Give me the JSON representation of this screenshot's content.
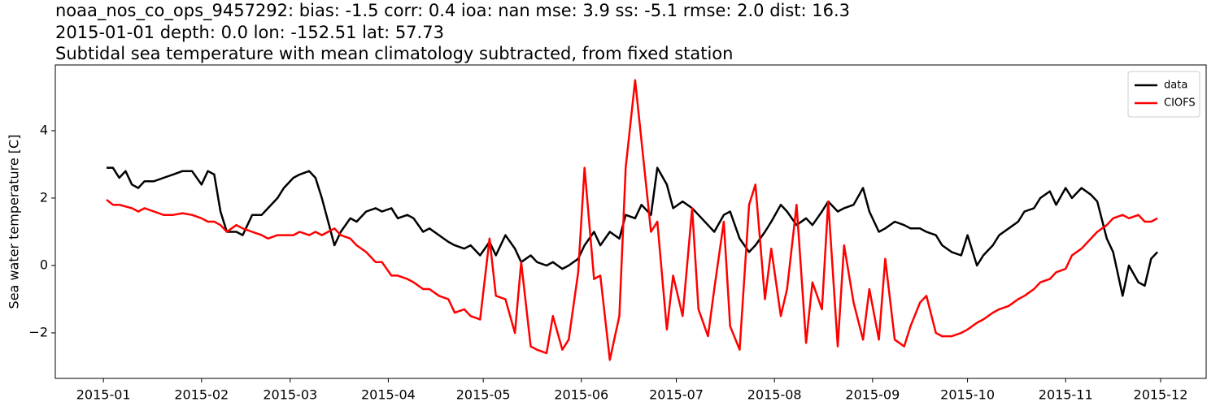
{
  "chart_data": {
    "type": "line",
    "title": "noaa_nos_co_ops_9457292: bias: -1.5  corr: 0.4  ioa: nan  mse: 3.9  ss: -5.1  rmse: 2.0  dist: 16.3",
    "subtitle": "2015-01-01 depth: 0.0 lon: -152.51 lat: 57.73",
    "subtitle2": "Subtidal sea temperature with mean climatology subtracted, from fixed station",
    "y_label": "Sea water temperature [C]",
    "x": [
      1,
      3,
      5,
      7,
      9,
      11,
      13,
      16,
      19,
      22,
      25,
      28,
      31,
      33,
      35,
      37,
      39,
      42,
      44,
      47,
      50,
      52,
      55,
      57,
      60,
      62,
      65,
      67,
      69,
      71,
      73,
      75,
      78,
      80,
      83,
      86,
      88,
      91,
      93,
      96,
      98,
      101,
      103,
      106,
      109,
      111,
      114,
      116,
      119,
      122,
      124,
      127,
      130,
      132,
      135,
      137,
      140,
      142,
      145,
      147,
      150,
      152,
      155,
      157,
      160,
      163,
      165,
      168,
      170,
      173,
      175,
      178,
      180,
      183,
      186,
      188,
      191,
      193,
      196,
      198,
      201,
      204,
      206,
      209,
      211,
      214,
      216,
      219,
      222,
      224,
      227,
      229,
      232,
      234,
      237,
      240,
      242,
      245,
      247,
      250,
      253,
      255,
      258,
      260,
      263,
      265,
      268,
      271,
      273,
      276,
      278,
      281,
      283,
      286,
      289,
      291,
      294,
      296,
      299,
      301,
      304,
      306,
      309,
      312,
      314,
      317,
      319,
      322,
      324,
      327,
      329,
      331,
      333
    ],
    "series": [
      {
        "name": "data",
        "color": "#000000",
        "values": [
          2.9,
          2.9,
          2.6,
          2.8,
          2.4,
          2.3,
          2.5,
          2.5,
          2.6,
          2.7,
          2.8,
          2.8,
          2.4,
          2.8,
          2.7,
          1.6,
          1.0,
          1.0,
          0.9,
          1.5,
          1.5,
          1.7,
          2.0,
          2.3,
          2.6,
          2.7,
          2.8,
          2.6,
          2.0,
          1.3,
          0.6,
          1.0,
          1.4,
          1.3,
          1.6,
          1.7,
          1.6,
          1.7,
          1.4,
          1.5,
          1.4,
          1.0,
          1.1,
          0.9,
          0.7,
          0.6,
          0.5,
          0.6,
          0.3,
          0.7,
          0.3,
          0.9,
          0.5,
          0.1,
          0.3,
          0.1,
          0.0,
          0.1,
          -0.1,
          0.0,
          0.2,
          0.6,
          1.0,
          0.6,
          1.0,
          0.8,
          1.5,
          1.4,
          1.8,
          1.5,
          2.9,
          2.4,
          1.7,
          1.9,
          1.7,
          1.5,
          1.2,
          1.0,
          1.5,
          1.6,
          0.8,
          0.4,
          0.6,
          1.0,
          1.3,
          1.8,
          1.6,
          1.2,
          1.4,
          1.2,
          1.6,
          1.9,
          1.6,
          1.7,
          1.8,
          2.3,
          1.6,
          1.0,
          1.1,
          1.3,
          1.2,
          1.1,
          1.1,
          1.0,
          0.9,
          0.6,
          0.4,
          0.3,
          0.9,
          0.0,
          0.3,
          0.6,
          0.9,
          1.1,
          1.3,
          1.6,
          1.7,
          2.0,
          2.2,
          1.8,
          2.3,
          2.0,
          2.3,
          2.1,
          1.9,
          0.8,
          0.4,
          -0.9,
          0.0,
          -0.5,
          -0.6,
          0.2,
          0.4
        ]
      },
      {
        "name": "CIOFS",
        "color": "#ff0000",
        "values": [
          1.95,
          1.8,
          1.8,
          1.75,
          1.7,
          1.6,
          1.7,
          1.6,
          1.5,
          1.5,
          1.55,
          1.5,
          1.4,
          1.3,
          1.3,
          1.2,
          1.0,
          1.2,
          1.1,
          1.0,
          0.9,
          0.8,
          0.9,
          0.9,
          0.9,
          1.0,
          0.9,
          1.0,
          0.9,
          1.0,
          1.1,
          0.9,
          0.8,
          0.6,
          0.4,
          0.1,
          0.1,
          -0.3,
          -0.3,
          -0.4,
          -0.5,
          -0.7,
          -0.7,
          -0.9,
          -1.0,
          -1.4,
          -1.3,
          -1.5,
          -1.6,
          0.8,
          -0.9,
          -1.0,
          -2.0,
          0.1,
          -2.4,
          -2.5,
          -2.6,
          -1.5,
          -2.5,
          -2.2,
          -0.2,
          2.9,
          -0.4,
          -0.3,
          -2.8,
          -1.5,
          2.9,
          5.5,
          3.7,
          1.0,
          1.3,
          -1.9,
          -0.3,
          -1.5,
          1.7,
          -1.3,
          -2.1,
          -0.7,
          1.3,
          -1.8,
          -2.5,
          1.8,
          2.4,
          -1.0,
          0.5,
          -1.5,
          -0.7,
          1.8,
          -2.3,
          -0.5,
          -1.3,
          1.9,
          -2.4,
          0.6,
          -1.1,
          -2.2,
          -0.7,
          -2.2,
          0.2,
          -2.2,
          -2.4,
          -1.8,
          -1.1,
          -0.9,
          -2.0,
          -2.1,
          -2.1,
          -2.0,
          -1.9,
          -1.7,
          -1.6,
          -1.4,
          -1.3,
          -1.2,
          -1.0,
          -0.9,
          -0.7,
          -0.5,
          -0.4,
          -0.2,
          -0.1,
          0.3,
          0.5,
          0.8,
          1.0,
          1.2,
          1.4,
          1.5,
          1.4,
          1.5,
          1.3,
          1.3,
          1.4
        ]
      }
    ],
    "xlim": [
      -15.2,
      348.4
    ],
    "xticks": [
      {
        "value": 0,
        "label": "2015-01"
      },
      {
        "value": 31,
        "label": "2015-02"
      },
      {
        "value": 59,
        "label": "2015-03"
      },
      {
        "value": 90,
        "label": "2015-04"
      },
      {
        "value": 120,
        "label": "2015-05"
      },
      {
        "value": 151,
        "label": "2015-06"
      },
      {
        "value": 181,
        "label": "2015-07"
      },
      {
        "value": 212,
        "label": "2015-08"
      },
      {
        "value": 243,
        "label": "2015-09"
      },
      {
        "value": 273,
        "label": "2015-10"
      },
      {
        "value": 304,
        "label": "2015-11"
      },
      {
        "value": 334,
        "label": "2015-12"
      }
    ],
    "ylim": [
      -3.35,
      5.95
    ],
    "yticks": [
      {
        "value": -2,
        "label": "−2"
      },
      0,
      2,
      4
    ],
    "legend": "upper right"
  }
}
